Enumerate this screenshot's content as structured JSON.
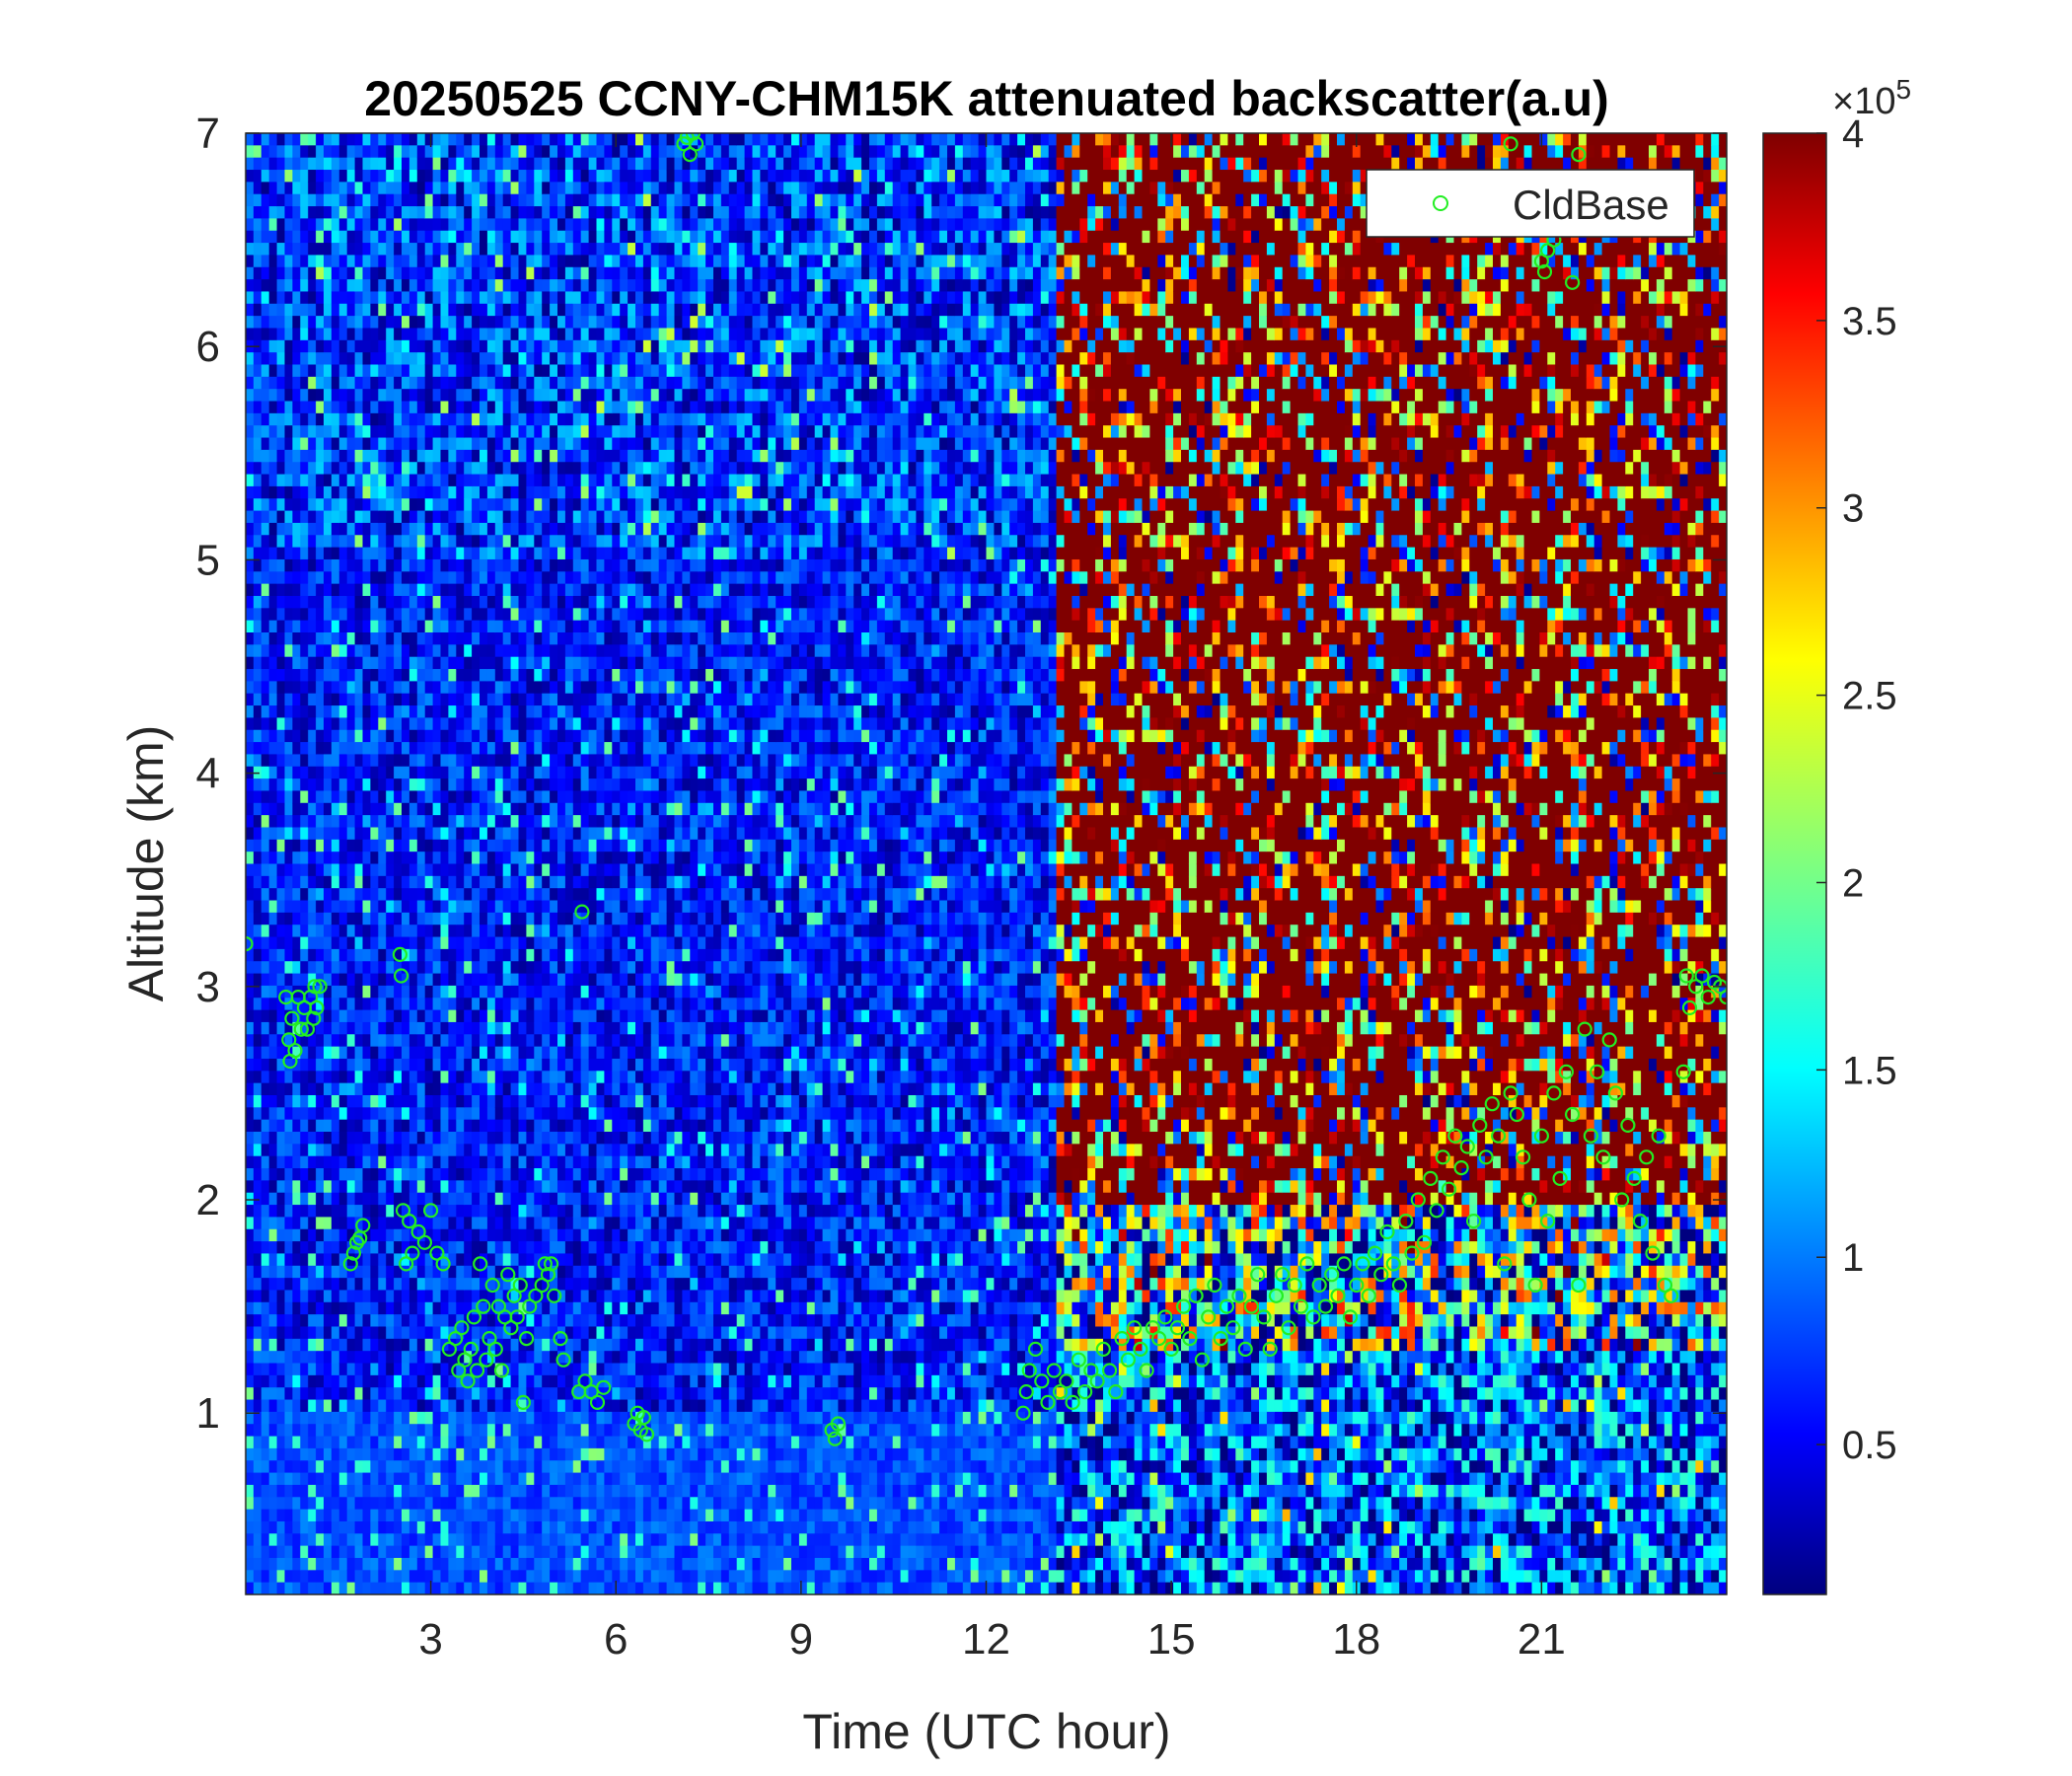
{
  "chart_data": {
    "type": "heatmap",
    "title": "20250525 CCNY-CHM15K attenuated backscatter(a.u)",
    "xlabel": "Time (UTC hour)",
    "ylabel": "Altitude (km)",
    "xlim": [
      0,
      24
    ],
    "ylim": [
      0.15,
      7
    ],
    "x_ticks": [
      3,
      6,
      9,
      12,
      15,
      18,
      21
    ],
    "x_tick_labels": [
      "3",
      "6",
      "9",
      "12",
      "15",
      "18",
      "21"
    ],
    "y_ticks": [
      1,
      2,
      3,
      4,
      5,
      6,
      7
    ],
    "y_tick_labels": [
      "1",
      "2",
      "3",
      "4",
      "5",
      "6",
      "7"
    ],
    "colorbar": {
      "clim": [
        0.1,
        4
      ],
      "ticks": [
        0.5,
        1,
        1.5,
        2,
        2.5,
        3,
        3.5,
        4
      ],
      "tick_labels": [
        "0.5",
        "1",
        "1.5",
        "2",
        "2.5",
        "3",
        "3.5",
        "4"
      ],
      "exponent_label": "×10",
      "exponent": "5",
      "colormap": "jet"
    },
    "series": [
      {
        "name": "CldBase",
        "marker": "circle",
        "color": "#22ee22",
        "points": [
          [
            0.0,
            3.2
          ],
          [
            0.65,
            2.95
          ],
          [
            0.7,
            2.75
          ],
          [
            0.72,
            2.65
          ],
          [
            0.75,
            2.85
          ],
          [
            0.8,
            2.7
          ],
          [
            0.85,
            2.95
          ],
          [
            0.9,
            2.8
          ],
          [
            0.95,
            2.9
          ],
          [
            1.0,
            2.8
          ],
          [
            1.05,
            2.95
          ],
          [
            1.1,
            2.85
          ],
          [
            1.12,
            3.0
          ],
          [
            1.15,
            2.9
          ],
          [
            1.2,
            3.0
          ],
          [
            1.7,
            1.7
          ],
          [
            1.75,
            1.75
          ],
          [
            1.8,
            1.8
          ],
          [
            1.85,
            1.82
          ],
          [
            1.9,
            1.88
          ],
          [
            2.5,
            3.15
          ],
          [
            2.52,
            3.05
          ],
          [
            2.55,
            1.95
          ],
          [
            2.6,
            1.7
          ],
          [
            2.65,
            1.9
          ],
          [
            2.7,
            1.75
          ],
          [
            2.8,
            1.85
          ],
          [
            2.9,
            1.8
          ],
          [
            3.0,
            1.95
          ],
          [
            3.1,
            1.75
          ],
          [
            3.2,
            1.7
          ],
          [
            3.3,
            1.3
          ],
          [
            3.4,
            1.35
          ],
          [
            3.45,
            1.2
          ],
          [
            3.5,
            1.4
          ],
          [
            3.55,
            1.25
          ],
          [
            3.6,
            1.15
          ],
          [
            3.65,
            1.3
          ],
          [
            3.7,
            1.45
          ],
          [
            3.75,
            1.2
          ],
          [
            3.8,
            1.7
          ],
          [
            3.85,
            1.5
          ],
          [
            3.9,
            1.25
          ],
          [
            3.95,
            1.35
          ],
          [
            4.0,
            1.6
          ],
          [
            4.05,
            1.3
          ],
          [
            4.1,
            1.5
          ],
          [
            4.15,
            1.2
          ],
          [
            4.2,
            1.45
          ],
          [
            4.25,
            1.65
          ],
          [
            4.3,
            1.4
          ],
          [
            4.35,
            1.55
          ],
          [
            4.4,
            1.45
          ],
          [
            4.45,
            1.6
          ],
          [
            4.5,
            1.05
          ],
          [
            4.55,
            1.35
          ],
          [
            4.6,
            1.5
          ],
          [
            4.7,
            1.55
          ],
          [
            4.8,
            1.6
          ],
          [
            4.85,
            1.7
          ],
          [
            4.9,
            1.65
          ],
          [
            4.95,
            1.7
          ],
          [
            5.0,
            1.55
          ],
          [
            5.1,
            1.35
          ],
          [
            5.15,
            1.25
          ],
          [
            5.4,
            1.1
          ],
          [
            5.45,
            3.35
          ],
          [
            5.5,
            1.15
          ],
          [
            5.6,
            1.1
          ],
          [
            5.7,
            1.05
          ],
          [
            5.8,
            1.12
          ],
          [
            6.3,
            0.95
          ],
          [
            6.35,
            1.0
          ],
          [
            6.4,
            0.92
          ],
          [
            6.45,
            0.98
          ],
          [
            6.5,
            0.9
          ],
          [
            7.1,
            6.95
          ],
          [
            7.15,
            6.98
          ],
          [
            7.2,
            6.9
          ],
          [
            7.25,
            7.0
          ],
          [
            7.3,
            6.95
          ],
          [
            9.5,
            0.92
          ],
          [
            9.55,
            0.88
          ],
          [
            9.6,
            0.95
          ],
          [
            12.6,
            1.0
          ],
          [
            12.65,
            1.1
          ],
          [
            12.7,
            1.2
          ],
          [
            12.8,
            1.3
          ],
          [
            12.9,
            1.15
          ],
          [
            13.0,
            1.05
          ],
          [
            13.1,
            1.2
          ],
          [
            13.2,
            1.1
          ],
          [
            13.3,
            1.15
          ],
          [
            13.4,
            1.05
          ],
          [
            13.5,
            1.25
          ],
          [
            13.6,
            1.1
          ],
          [
            13.7,
            1.2
          ],
          [
            13.8,
            1.15
          ],
          [
            13.9,
            1.3
          ],
          [
            14.0,
            1.2
          ],
          [
            14.1,
            1.1
          ],
          [
            14.2,
            1.35
          ],
          [
            14.3,
            1.25
          ],
          [
            14.4,
            1.4
          ],
          [
            14.5,
            1.3
          ],
          [
            14.6,
            1.2
          ],
          [
            14.7,
            1.4
          ],
          [
            14.8,
            1.35
          ],
          [
            14.9,
            1.45
          ],
          [
            15.0,
            1.3
          ],
          [
            15.1,
            1.4
          ],
          [
            15.2,
            1.5
          ],
          [
            15.3,
            1.35
          ],
          [
            15.4,
            1.55
          ],
          [
            15.5,
            1.25
          ],
          [
            15.6,
            1.45
          ],
          [
            15.7,
            1.6
          ],
          [
            15.8,
            1.35
          ],
          [
            15.9,
            1.5
          ],
          [
            16.0,
            1.4
          ],
          [
            16.1,
            1.55
          ],
          [
            16.2,
            1.3
          ],
          [
            16.3,
            1.5
          ],
          [
            16.4,
            1.65
          ],
          [
            16.5,
            1.45
          ],
          [
            16.6,
            1.3
          ],
          [
            16.7,
            1.55
          ],
          [
            16.8,
            1.65
          ],
          [
            16.9,
            1.4
          ],
          [
            17.0,
            1.6
          ],
          [
            17.1,
            1.5
          ],
          [
            17.2,
            1.7
          ],
          [
            17.3,
            1.45
          ],
          [
            17.4,
            1.6
          ],
          [
            17.5,
            1.5
          ],
          [
            17.6,
            1.65
          ],
          [
            17.7,
            1.55
          ],
          [
            17.8,
            1.7
          ],
          [
            17.9,
            1.45
          ],
          [
            18.0,
            1.6
          ],
          [
            18.1,
            1.7
          ],
          [
            18.2,
            1.55
          ],
          [
            18.3,
            1.75
          ],
          [
            18.4,
            1.65
          ],
          [
            18.5,
            1.85
          ],
          [
            18.6,
            1.7
          ],
          [
            18.7,
            1.6
          ],
          [
            18.8,
            1.9
          ],
          [
            18.9,
            1.75
          ],
          [
            19.0,
            2.0
          ],
          [
            19.1,
            1.8
          ],
          [
            19.2,
            2.1
          ],
          [
            19.3,
            1.95
          ],
          [
            19.4,
            2.2
          ],
          [
            19.5,
            2.05
          ],
          [
            19.6,
            2.3
          ],
          [
            19.7,
            2.15
          ],
          [
            19.8,
            2.25
          ],
          [
            19.9,
            1.9
          ],
          [
            20.0,
            2.35
          ],
          [
            20.1,
            2.2
          ],
          [
            20.2,
            2.45
          ],
          [
            20.3,
            2.3
          ],
          [
            20.4,
            1.7
          ],
          [
            20.5,
            2.5
          ],
          [
            20.6,
            2.4
          ],
          [
            20.7,
            2.2
          ],
          [
            20.8,
            2.0
          ],
          [
            20.9,
            1.6
          ],
          [
            21.0,
            2.3
          ],
          [
            21.1,
            1.9
          ],
          [
            21.2,
            2.5
          ],
          [
            21.3,
            2.1
          ],
          [
            21.4,
            2.6
          ],
          [
            21.5,
            2.4
          ],
          [
            21.6,
            1.6
          ],
          [
            21.7,
            2.8
          ],
          [
            21.8,
            2.3
          ],
          [
            21.9,
            2.6
          ],
          [
            22.0,
            2.2
          ],
          [
            22.1,
            2.75
          ],
          [
            22.2,
            2.5
          ],
          [
            22.3,
            2.0
          ],
          [
            22.4,
            2.35
          ],
          [
            22.5,
            2.1
          ],
          [
            22.6,
            1.9
          ],
          [
            22.7,
            2.2
          ],
          [
            22.8,
            1.75
          ],
          [
            22.9,
            2.3
          ],
          [
            23.0,
            1.6
          ],
          [
            23.1,
            1.55
          ],
          [
            23.3,
            2.6
          ],
          [
            23.35,
            3.05
          ],
          [
            23.4,
            2.9
          ],
          [
            23.5,
            3.0
          ],
          [
            23.6,
            3.05
          ],
          [
            23.7,
            2.95
          ],
          [
            23.8,
            3.02
          ],
          [
            23.9,
            3.0
          ],
          [
            24.0,
            2.95
          ],
          [
            21.0,
            6.4
          ],
          [
            21.05,
            6.35
          ],
          [
            21.1,
            6.45
          ],
          [
            21.2,
            6.5
          ],
          [
            21.5,
            6.3
          ],
          [
            21.6,
            6.9
          ],
          [
            21.7,
            6.6
          ],
          [
            21.8,
            6.55
          ],
          [
            20.5,
            6.95
          ]
        ]
      }
    ],
    "legend": {
      "placement": "top-right",
      "entries": [
        "CldBase"
      ]
    }
  }
}
